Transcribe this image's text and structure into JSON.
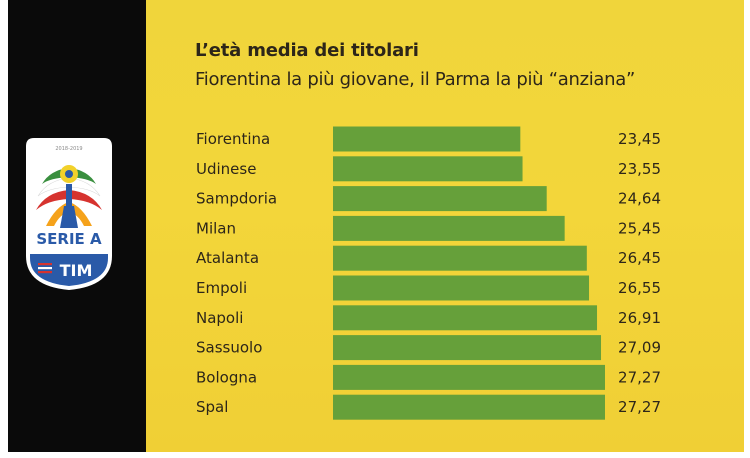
{
  "header": {
    "title": "L’età media dei titolari",
    "subtitle": "Fiorentina la più giovane, il Parma la più “anziana”"
  },
  "logo": {
    "season": "2018-2019",
    "league": "SERIE A",
    "sponsor": "TIM",
    "icon": "serie-a-logo-icon"
  },
  "colors": {
    "panel": "#f1d63a",
    "bar": "#66a03a",
    "text": "#2d2619",
    "left_band": "#0a0a0a",
    "logo_blue": "#2a5aa8",
    "logo_red": "#d6332f"
  },
  "chart_data": {
    "type": "bar",
    "orientation": "horizontal",
    "title": "L’età media dei titolari",
    "subtitle": "Fiorentina la più giovane, il Parma la più “anziana”",
    "categories": [
      "Fiorentina",
      "Udinese",
      "Sampdoria",
      "Milan",
      "Atalanta",
      "Empoli",
      "Napoli",
      "Sassuolo",
      "Bologna",
      "Spal"
    ],
    "values": [
      23.45,
      23.55,
      24.64,
      25.45,
      26.45,
      26.55,
      26.91,
      27.09,
      27.27,
      27.27
    ],
    "value_labels": [
      "23,45",
      "23,55",
      "24,64",
      "25,45",
      "26,45",
      "26,55",
      "26,91",
      "27,09",
      "27,27",
      "27,27"
    ],
    "xlim": [
      15,
      27.27
    ],
    "grid": false,
    "legend": "none"
  }
}
